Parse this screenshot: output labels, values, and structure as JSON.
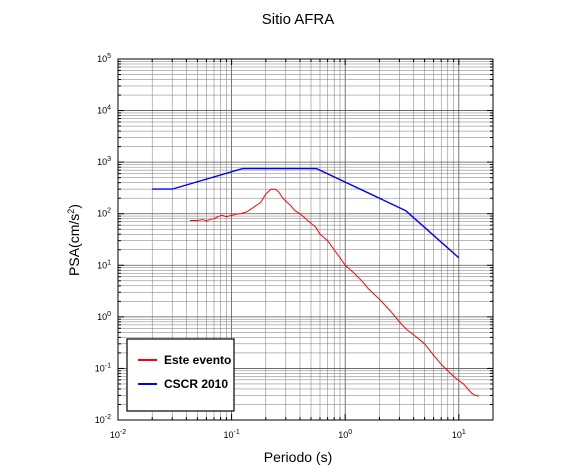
{
  "chart_data": {
    "type": "line",
    "title": "Sitio AFRA",
    "xlabel": "Periodo (s)",
    "ylabel_base": "PSA(cm/s",
    "ylabel_sup": "2",
    "ylabel_end": ")",
    "x_scale": "log",
    "y_scale": "log",
    "xlim": [
      0.01,
      20
    ],
    "ylim": [
      0.01,
      100000
    ],
    "grid": true,
    "legend_position": "bottom-left",
    "x_ticks": [
      {
        "base": "10",
        "exp": "-2",
        "value": 0.01
      },
      {
        "base": "10",
        "exp": "-1",
        "value": 0.1
      },
      {
        "base": "10",
        "exp": "0",
        "value": 1
      },
      {
        "base": "10",
        "exp": "1",
        "value": 10
      }
    ],
    "y_ticks": [
      {
        "base": "10",
        "exp": "-2",
        "value": 0.01
      },
      {
        "base": "10",
        "exp": "-1",
        "value": 0.1
      },
      {
        "base": "10",
        "exp": "0",
        "value": 1
      },
      {
        "base": "10",
        "exp": "1",
        "value": 10
      },
      {
        "base": "10",
        "exp": "2",
        "value": 100
      },
      {
        "base": "10",
        "exp": "3",
        "value": 1000
      },
      {
        "base": "10",
        "exp": "4",
        "value": 10000
      },
      {
        "base": "10",
        "exp": "5",
        "value": 100000
      }
    ],
    "series": [
      {
        "name": "Este evento",
        "color": "#ff0000",
        "points": [
          [
            0.043,
            74
          ],
          [
            0.05,
            74
          ],
          [
            0.056,
            77
          ],
          [
            0.06,
            72
          ],
          [
            0.065,
            78
          ],
          [
            0.07,
            80
          ],
          [
            0.076,
            88
          ],
          [
            0.082,
            93
          ],
          [
            0.09,
            88
          ],
          [
            0.1,
            93
          ],
          [
            0.11,
            98
          ],
          [
            0.12,
            100
          ],
          [
            0.135,
            108
          ],
          [
            0.15,
            125
          ],
          [
            0.165,
            145
          ],
          [
            0.18,
            165
          ],
          [
            0.2,
            240
          ],
          [
            0.22,
            295
          ],
          [
            0.24,
            300
          ],
          [
            0.26,
            265
          ],
          [
            0.28,
            205
          ],
          [
            0.3,
            175
          ],
          [
            0.33,
            145
          ],
          [
            0.36,
            115
          ],
          [
            0.4,
            100
          ],
          [
            0.45,
            80
          ],
          [
            0.5,
            65
          ],
          [
            0.55,
            55
          ],
          [
            0.6,
            40
          ],
          [
            0.7,
            30
          ],
          [
            0.8,
            20
          ],
          [
            0.9,
            14
          ],
          [
            1.0,
            10
          ],
          [
            1.2,
            7
          ],
          [
            1.4,
            5
          ],
          [
            1.6,
            3.5
          ],
          [
            2.0,
            2.2
          ],
          [
            2.5,
            1.3
          ],
          [
            3.0,
            0.8
          ],
          [
            3.5,
            0.56
          ],
          [
            4.0,
            0.45
          ],
          [
            5.0,
            0.3
          ],
          [
            6.0,
            0.18
          ],
          [
            7.0,
            0.12
          ],
          [
            8.0,
            0.09
          ],
          [
            9.0,
            0.07
          ],
          [
            10.0,
            0.058
          ],
          [
            11.0,
            0.05
          ],
          [
            12.0,
            0.04
          ],
          [
            13.0,
            0.033
          ],
          [
            14.0,
            0.03
          ],
          [
            15.0,
            0.029
          ]
        ]
      },
      {
        "name": "CSCR 2010",
        "color": "#0000ff",
        "points": [
          [
            0.02,
            300
          ],
          [
            0.03,
            300
          ],
          [
            0.125,
            750
          ],
          [
            0.56,
            750
          ],
          [
            3.4,
            115
          ],
          [
            10.0,
            14
          ]
        ]
      }
    ]
  }
}
